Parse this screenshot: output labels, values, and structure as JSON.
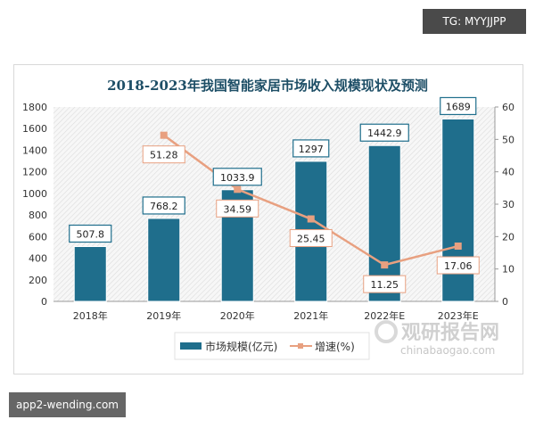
{
  "overlays": {
    "top_right_badge": "TG: MYYJJPP",
    "bottom_left_badge": "app2-wending.com"
  },
  "watermark": {
    "text": "观研报告网",
    "subtext": "chinabaogao.com"
  },
  "chart_data": {
    "type": "bar+line",
    "title": "2018-2023年我国智能家居市场收入规模现状及预测",
    "categories": [
      "2018年",
      "2019年",
      "2020年",
      "2021年",
      "2022年E",
      "2023年E"
    ],
    "series": [
      {
        "name": "市场规模(亿元)",
        "type": "bar",
        "axis": "left",
        "color": "#1f6e8c",
        "values": [
          507.8,
          768.2,
          1033.9,
          1297,
          1442.9,
          1689
        ],
        "labels": [
          "507.8",
          "768.2",
          "1033.9",
          "1297",
          "1442.9",
          "1689"
        ]
      },
      {
        "name": "增速(%)",
        "type": "line",
        "axis": "right",
        "color": "#e8a080",
        "values": [
          null,
          51.28,
          34.59,
          25.45,
          11.25,
          17.06
        ],
        "labels": [
          "",
          "51.28",
          "34.59",
          "25.45",
          "11.25",
          "17.06"
        ]
      }
    ],
    "y_left": {
      "range": [
        0,
        1800
      ],
      "ticks": [
        "0",
        "200",
        "400",
        "600",
        "800",
        "1000",
        "1200",
        "1400",
        "1600",
        "1800"
      ]
    },
    "y_right": {
      "range": [
        0,
        60
      ],
      "ticks": [
        "0",
        "10",
        "20",
        "30",
        "40",
        "50",
        "60"
      ]
    },
    "legend_position": "bottom-left",
    "plot_background": "hatched"
  }
}
